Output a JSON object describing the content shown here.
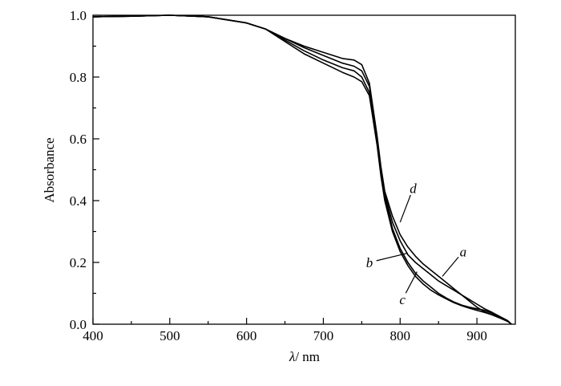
{
  "chart_data": {
    "type": "line",
    "xlabel_symbol": "λ",
    "xlabel_unit": "/ nm",
    "ylabel": "Absorbance",
    "xlim": [
      400,
      950
    ],
    "ylim": [
      0.0,
      1.0
    ],
    "x_ticks": [
      400,
      500,
      600,
      700,
      800,
      900
    ],
    "x_tick_labels": [
      "400",
      "500",
      "600",
      "700",
      "800",
      "900"
    ],
    "y_ticks": [
      0.0,
      0.2,
      0.4,
      0.6,
      0.8,
      1.0
    ],
    "y_tick_labels": [
      "0.0",
      "0.2",
      "0.4",
      "0.6",
      "0.8",
      "1.0"
    ],
    "grid": false,
    "line_color": "#000000",
    "x": [
      400,
      450,
      500,
      550,
      600,
      625,
      650,
      675,
      700,
      725,
      740,
      750,
      760,
      770,
      775,
      780,
      790,
      800,
      810,
      820,
      830,
      840,
      850,
      860,
      870,
      880,
      890,
      900,
      910,
      920,
      930,
      940,
      945
    ],
    "series": [
      {
        "name": "a",
        "values": [
          0.995,
          0.997,
          1.0,
          0.995,
          0.975,
          0.955,
          0.925,
          0.895,
          0.87,
          0.845,
          0.835,
          0.82,
          0.77,
          0.6,
          0.5,
          0.42,
          0.33,
          0.27,
          0.225,
          0.2,
          0.18,
          0.16,
          0.14,
          0.125,
          0.11,
          0.095,
          0.08,
          0.065,
          0.05,
          0.038,
          0.025,
          0.012,
          0.0
        ]
      },
      {
        "name": "b",
        "values": [
          0.995,
          0.997,
          1.0,
          0.995,
          0.975,
          0.955,
          0.92,
          0.885,
          0.855,
          0.83,
          0.82,
          0.8,
          0.75,
          0.59,
          0.49,
          0.41,
          0.31,
          0.245,
          0.2,
          0.165,
          0.14,
          0.12,
          0.1,
          0.085,
          0.072,
          0.062,
          0.055,
          0.05,
          0.045,
          0.035,
          0.022,
          0.01,
          0.0
        ]
      },
      {
        "name": "c",
        "values": [
          0.995,
          0.997,
          1.0,
          0.995,
          0.975,
          0.955,
          0.915,
          0.875,
          0.845,
          0.815,
          0.8,
          0.785,
          0.74,
          0.58,
          0.48,
          0.4,
          0.3,
          0.235,
          0.19,
          0.155,
          0.13,
          0.11,
          0.095,
          0.082,
          0.07,
          0.06,
          0.052,
          0.045,
          0.038,
          0.03,
          0.02,
          0.009,
          0.0
        ]
      },
      {
        "name": "d",
        "values": [
          0.995,
          0.997,
          1.0,
          0.995,
          0.975,
          0.955,
          0.925,
          0.9,
          0.88,
          0.86,
          0.855,
          0.84,
          0.78,
          0.61,
          0.51,
          0.43,
          0.35,
          0.29,
          0.25,
          0.22,
          0.195,
          0.175,
          0.155,
          0.135,
          0.115,
          0.095,
          0.075,
          0.055,
          0.04,
          0.03,
          0.02,
          0.01,
          0.0
        ]
      }
    ],
    "annotations": [
      {
        "label": "a",
        "x": 855,
        "y": 0.155,
        "text_x": 882,
        "text_y": 0.235
      },
      {
        "label": "b",
        "x": 810,
        "y": 0.23,
        "text_x": 760,
        "text_y": 0.2
      },
      {
        "label": "c",
        "x": 822,
        "y": 0.17,
        "text_x": 803,
        "text_y": 0.08
      },
      {
        "label": "d",
        "x": 800,
        "y": 0.33,
        "text_x": 817,
        "text_y": 0.44
      }
    ]
  }
}
